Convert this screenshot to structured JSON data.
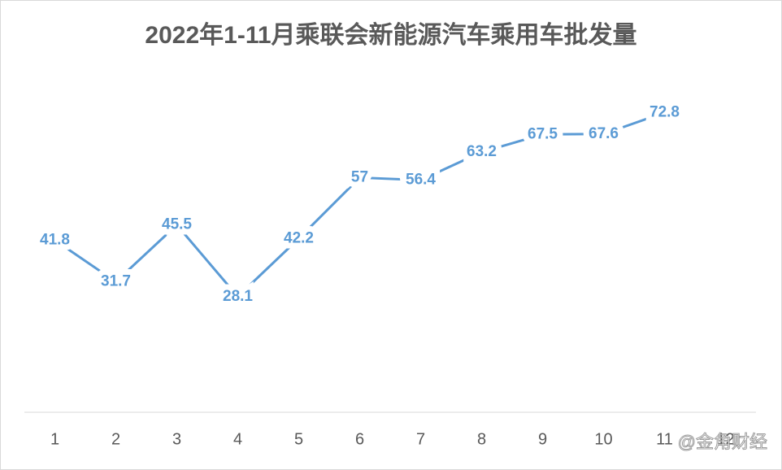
{
  "chart_data": {
    "type": "line",
    "title": "2022年1-11月乘联会新能源汽车乘用车批发量",
    "categories": [
      "1",
      "2",
      "3",
      "4",
      "5",
      "6",
      "7",
      "8",
      "9",
      "10",
      "11",
      "12"
    ],
    "series": [
      {
        "name": "批发量",
        "color": "#5b9bd5",
        "values": [
          41.8,
          31.7,
          45.5,
          28.1,
          42.2,
          57,
          56.4,
          63.2,
          67.5,
          67.6,
          72.8,
          null
        ]
      }
    ],
    "ylim": [
      0,
      80
    ],
    "data_labels": true,
    "legend": false
  },
  "watermark": "@金角财经"
}
